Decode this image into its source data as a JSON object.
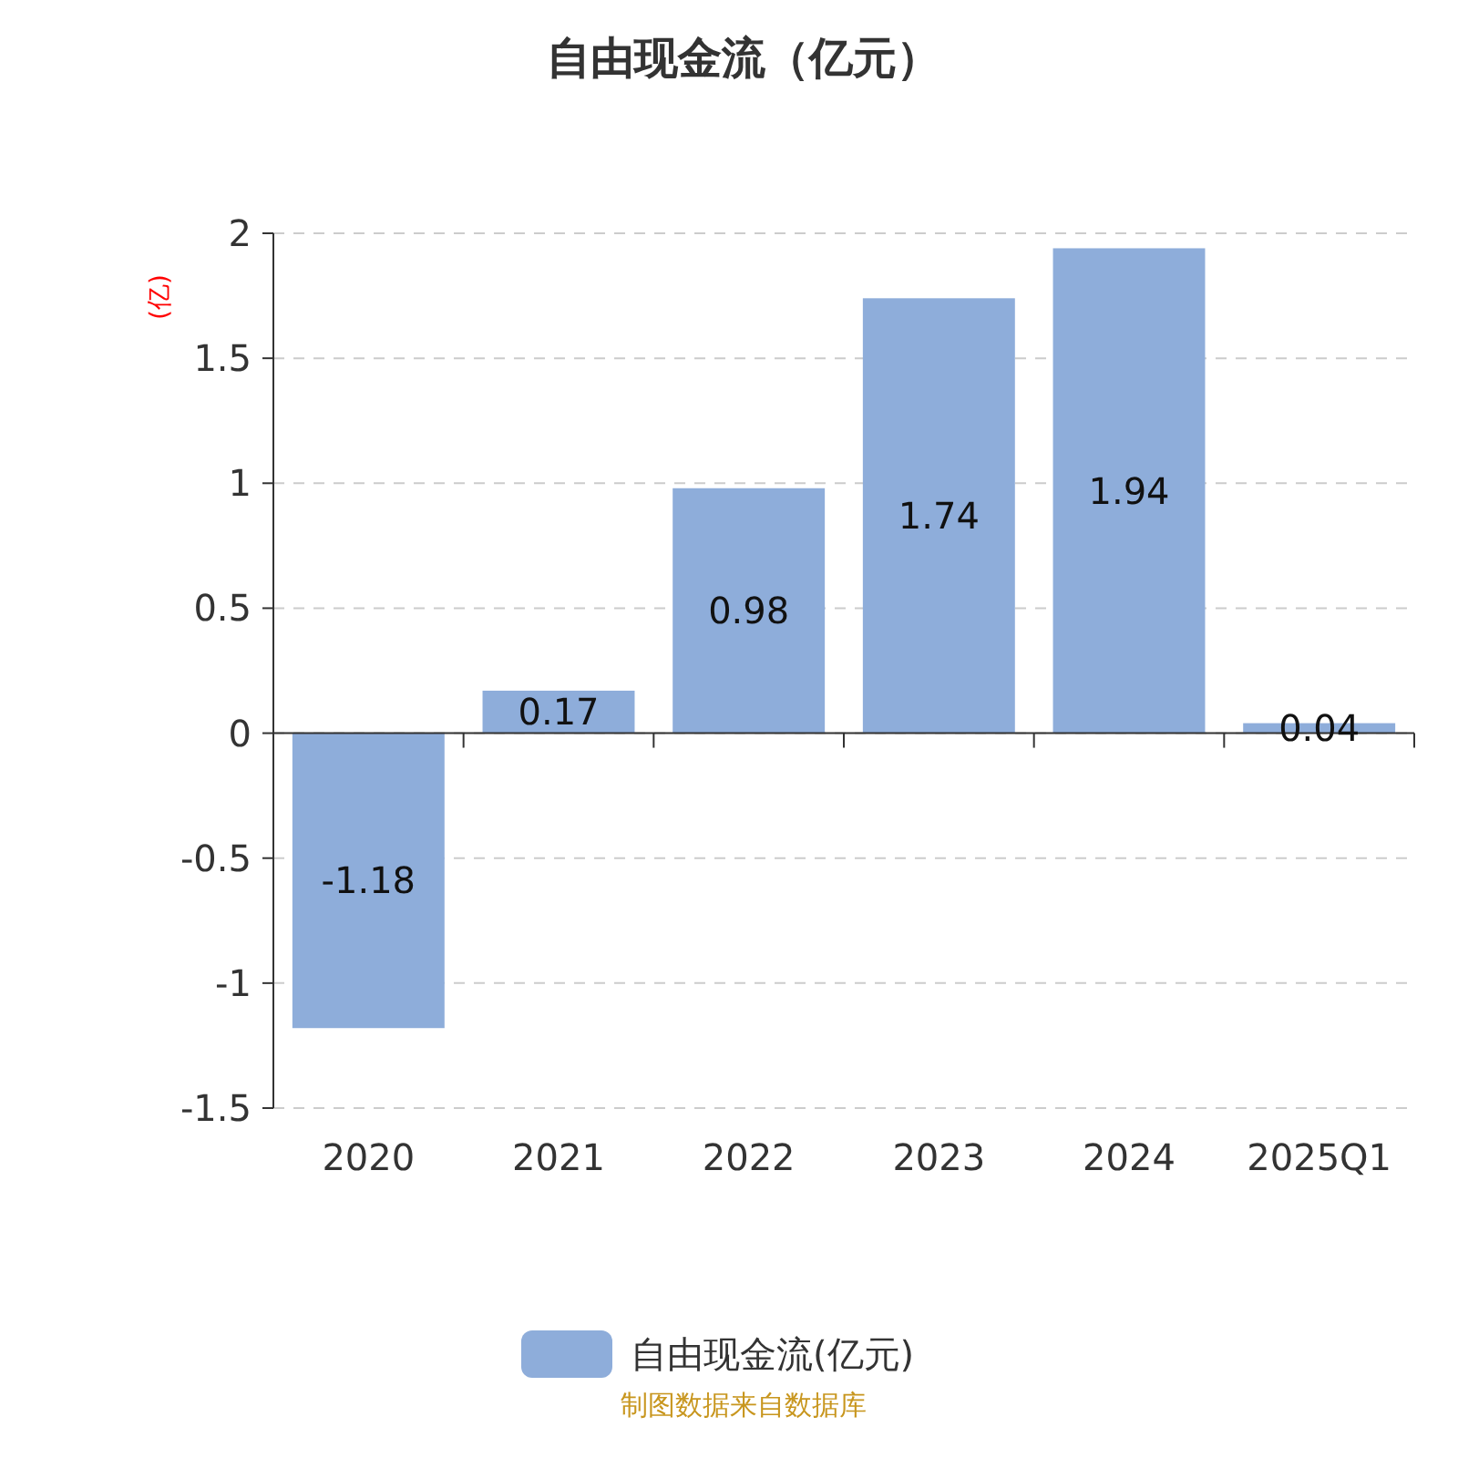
{
  "chart_data": {
    "type": "bar",
    "title": "自由现金流（亿元）",
    "ylabel": "(亿)",
    "categories": [
      "2020",
      "2021",
      "2022",
      "2023",
      "2024",
      "2025Q1"
    ],
    "series": [
      {
        "name": "自由现金流(亿元)",
        "color": "#8eadda",
        "values": [
          -1.18,
          0.17,
          0.98,
          1.74,
          1.94,
          0.04
        ]
      }
    ],
    "ylim": [
      -1.5,
      2
    ],
    "yticks": [
      -1.5,
      -1,
      -0.5,
      0,
      0.5,
      1,
      1.5,
      2
    ],
    "grid": "y",
    "legend": "bottom",
    "data_labels": true,
    "annotations": [
      "制图数据来自数据库"
    ]
  }
}
